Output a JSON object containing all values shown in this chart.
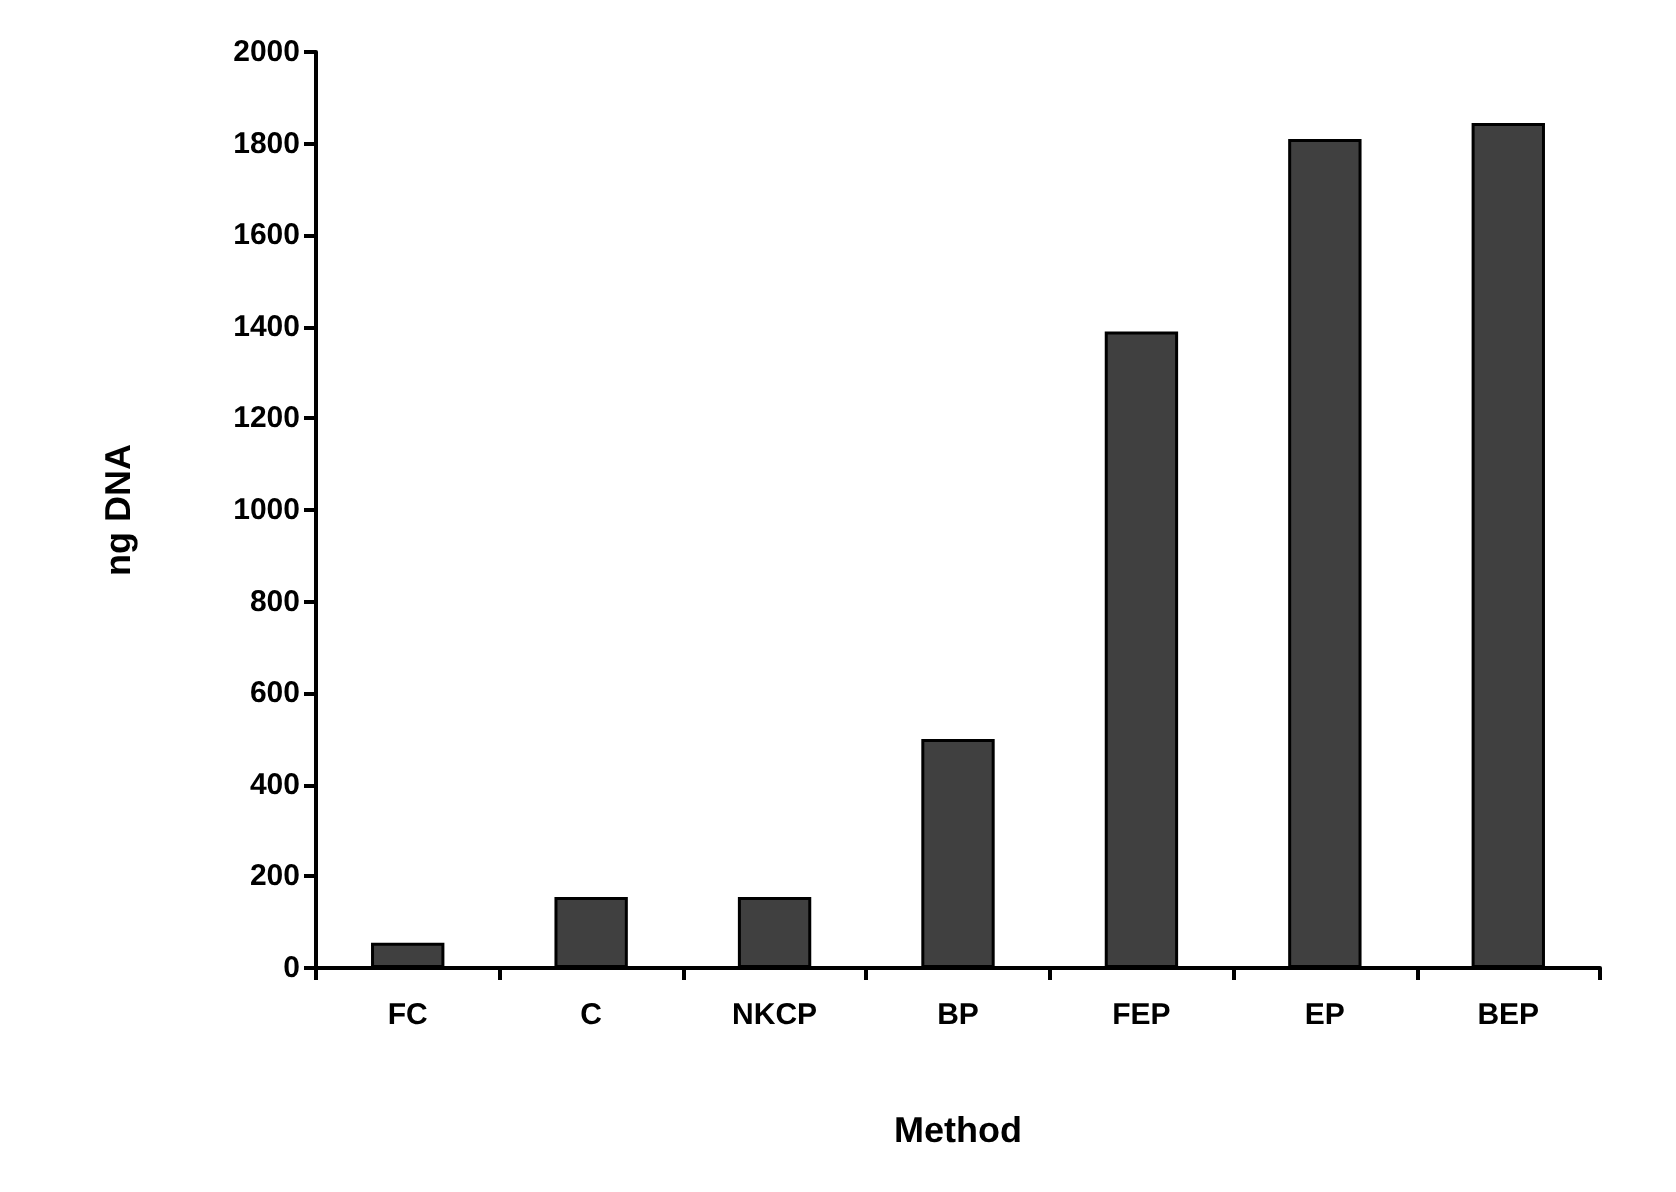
{
  "chart_data": {
    "type": "bar",
    "xlabel": "Method",
    "ylabel": "ng DNA",
    "categories": [
      "FC",
      "C",
      "NKCP",
      "BP",
      "FEP",
      "EP",
      "BEP"
    ],
    "values": [
      55,
      155,
      155,
      500,
      1390,
      1810,
      1845
    ],
    "color": "#404040",
    "ylim": [
      0,
      2000
    ],
    "yticks": [
      0,
      200,
      400,
      600,
      800,
      1000,
      1200,
      1400,
      1600,
      1800,
      2000
    ],
    "grid": false
  }
}
